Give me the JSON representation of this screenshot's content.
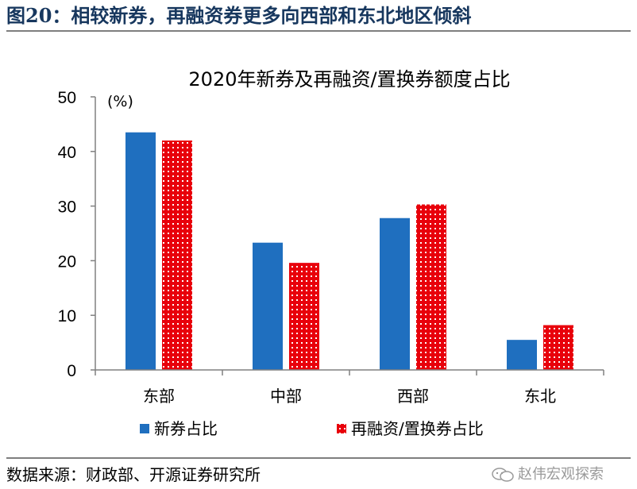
{
  "figure": {
    "title": "图20：相较新券，再融资券更多向西部和东北地区倾斜",
    "source": "数据来源：财政部、开源证券研究所",
    "watermark": "赵伟宏观探索"
  },
  "colors": {
    "title": "#17375e",
    "series_new": "#1f6fbf",
    "series_refi": "#e8000b",
    "axis": "#808080"
  },
  "chart_data": {
    "type": "bar",
    "title": "2020年新券及再融资/置换券额度占比",
    "unit_label": "(%)",
    "categories": [
      "东部",
      "中部",
      "西部",
      "东北"
    ],
    "ylim": [
      0,
      50
    ],
    "yticks": [
      0,
      10,
      20,
      30,
      40,
      50
    ],
    "grid": false,
    "legend_position": "bottom",
    "series": [
      {
        "name": "新券占比",
        "values": [
          43.5,
          23.3,
          27.8,
          5.5
        ],
        "color": "#1f6fbf",
        "pattern": "solid"
      },
      {
        "name": "再融资/置换券占比",
        "values": [
          42.0,
          19.6,
          30.3,
          8.2
        ],
        "color": "#e8000b",
        "pattern": "dotted"
      }
    ]
  }
}
